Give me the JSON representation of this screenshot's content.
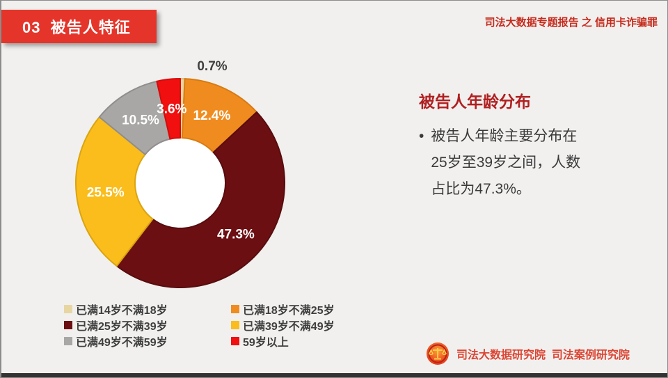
{
  "header": {
    "section_label": "03  被告人特征",
    "report_series": "司法大数据专题报告 之 信用卡诈骗罪"
  },
  "chart_data": {
    "type": "pie",
    "subtype": "donut",
    "title": "被告人年龄分布",
    "value_unit": "%",
    "start_angle_deg": 0,
    "direction": "clockwise",
    "legend_position": "bottom-left",
    "hole_color": "#ffffff",
    "slices": [
      {
        "label": "已满14岁不满18岁",
        "value": 0.7,
        "color": "#e8d6a2",
        "border": "#d4bf85"
      },
      {
        "label": "已满18岁不满25岁",
        "value": 12.4,
        "color": "#f08c1f",
        "border": "#d87b12"
      },
      {
        "label": "已满25岁不满39岁",
        "value": 47.3,
        "color": "#6c0f12",
        "border": "#580c0e"
      },
      {
        "label": "已满39岁不满49岁",
        "value": 25.5,
        "color": "#fabd1c",
        "border": "#dba410"
      },
      {
        "label": "已满49岁不满59岁",
        "value": 10.5,
        "color": "#a8a7a5",
        "border": "#8f8e8c"
      },
      {
        "label": "59岁以上",
        "value": 3.6,
        "color": "#f20f0f",
        "border": "#d40c0c"
      }
    ]
  },
  "panel": {
    "title": "被告人年龄分布",
    "bullet_lines": [
      "被告人年龄主要分布在",
      "25岁至39岁之间，人数",
      "占比为47.3%。"
    ]
  },
  "footer": {
    "org_text": "司法大数据研究院  司法案例研究院"
  },
  "colors": {
    "banner_bg": "#e5352b",
    "banner_text": "#ffffff",
    "series_text": "#c52a1c",
    "panel_title": "#b01f21",
    "body_text": "#3a3a3a",
    "legend_text": "#3f3f3f",
    "footer_text": "#dc4534",
    "slide_bg": "#f1f0ee",
    "bottom_bar": "#333333",
    "outside_label_text": "#404040",
    "inside_label_text": "#ffffff"
  }
}
